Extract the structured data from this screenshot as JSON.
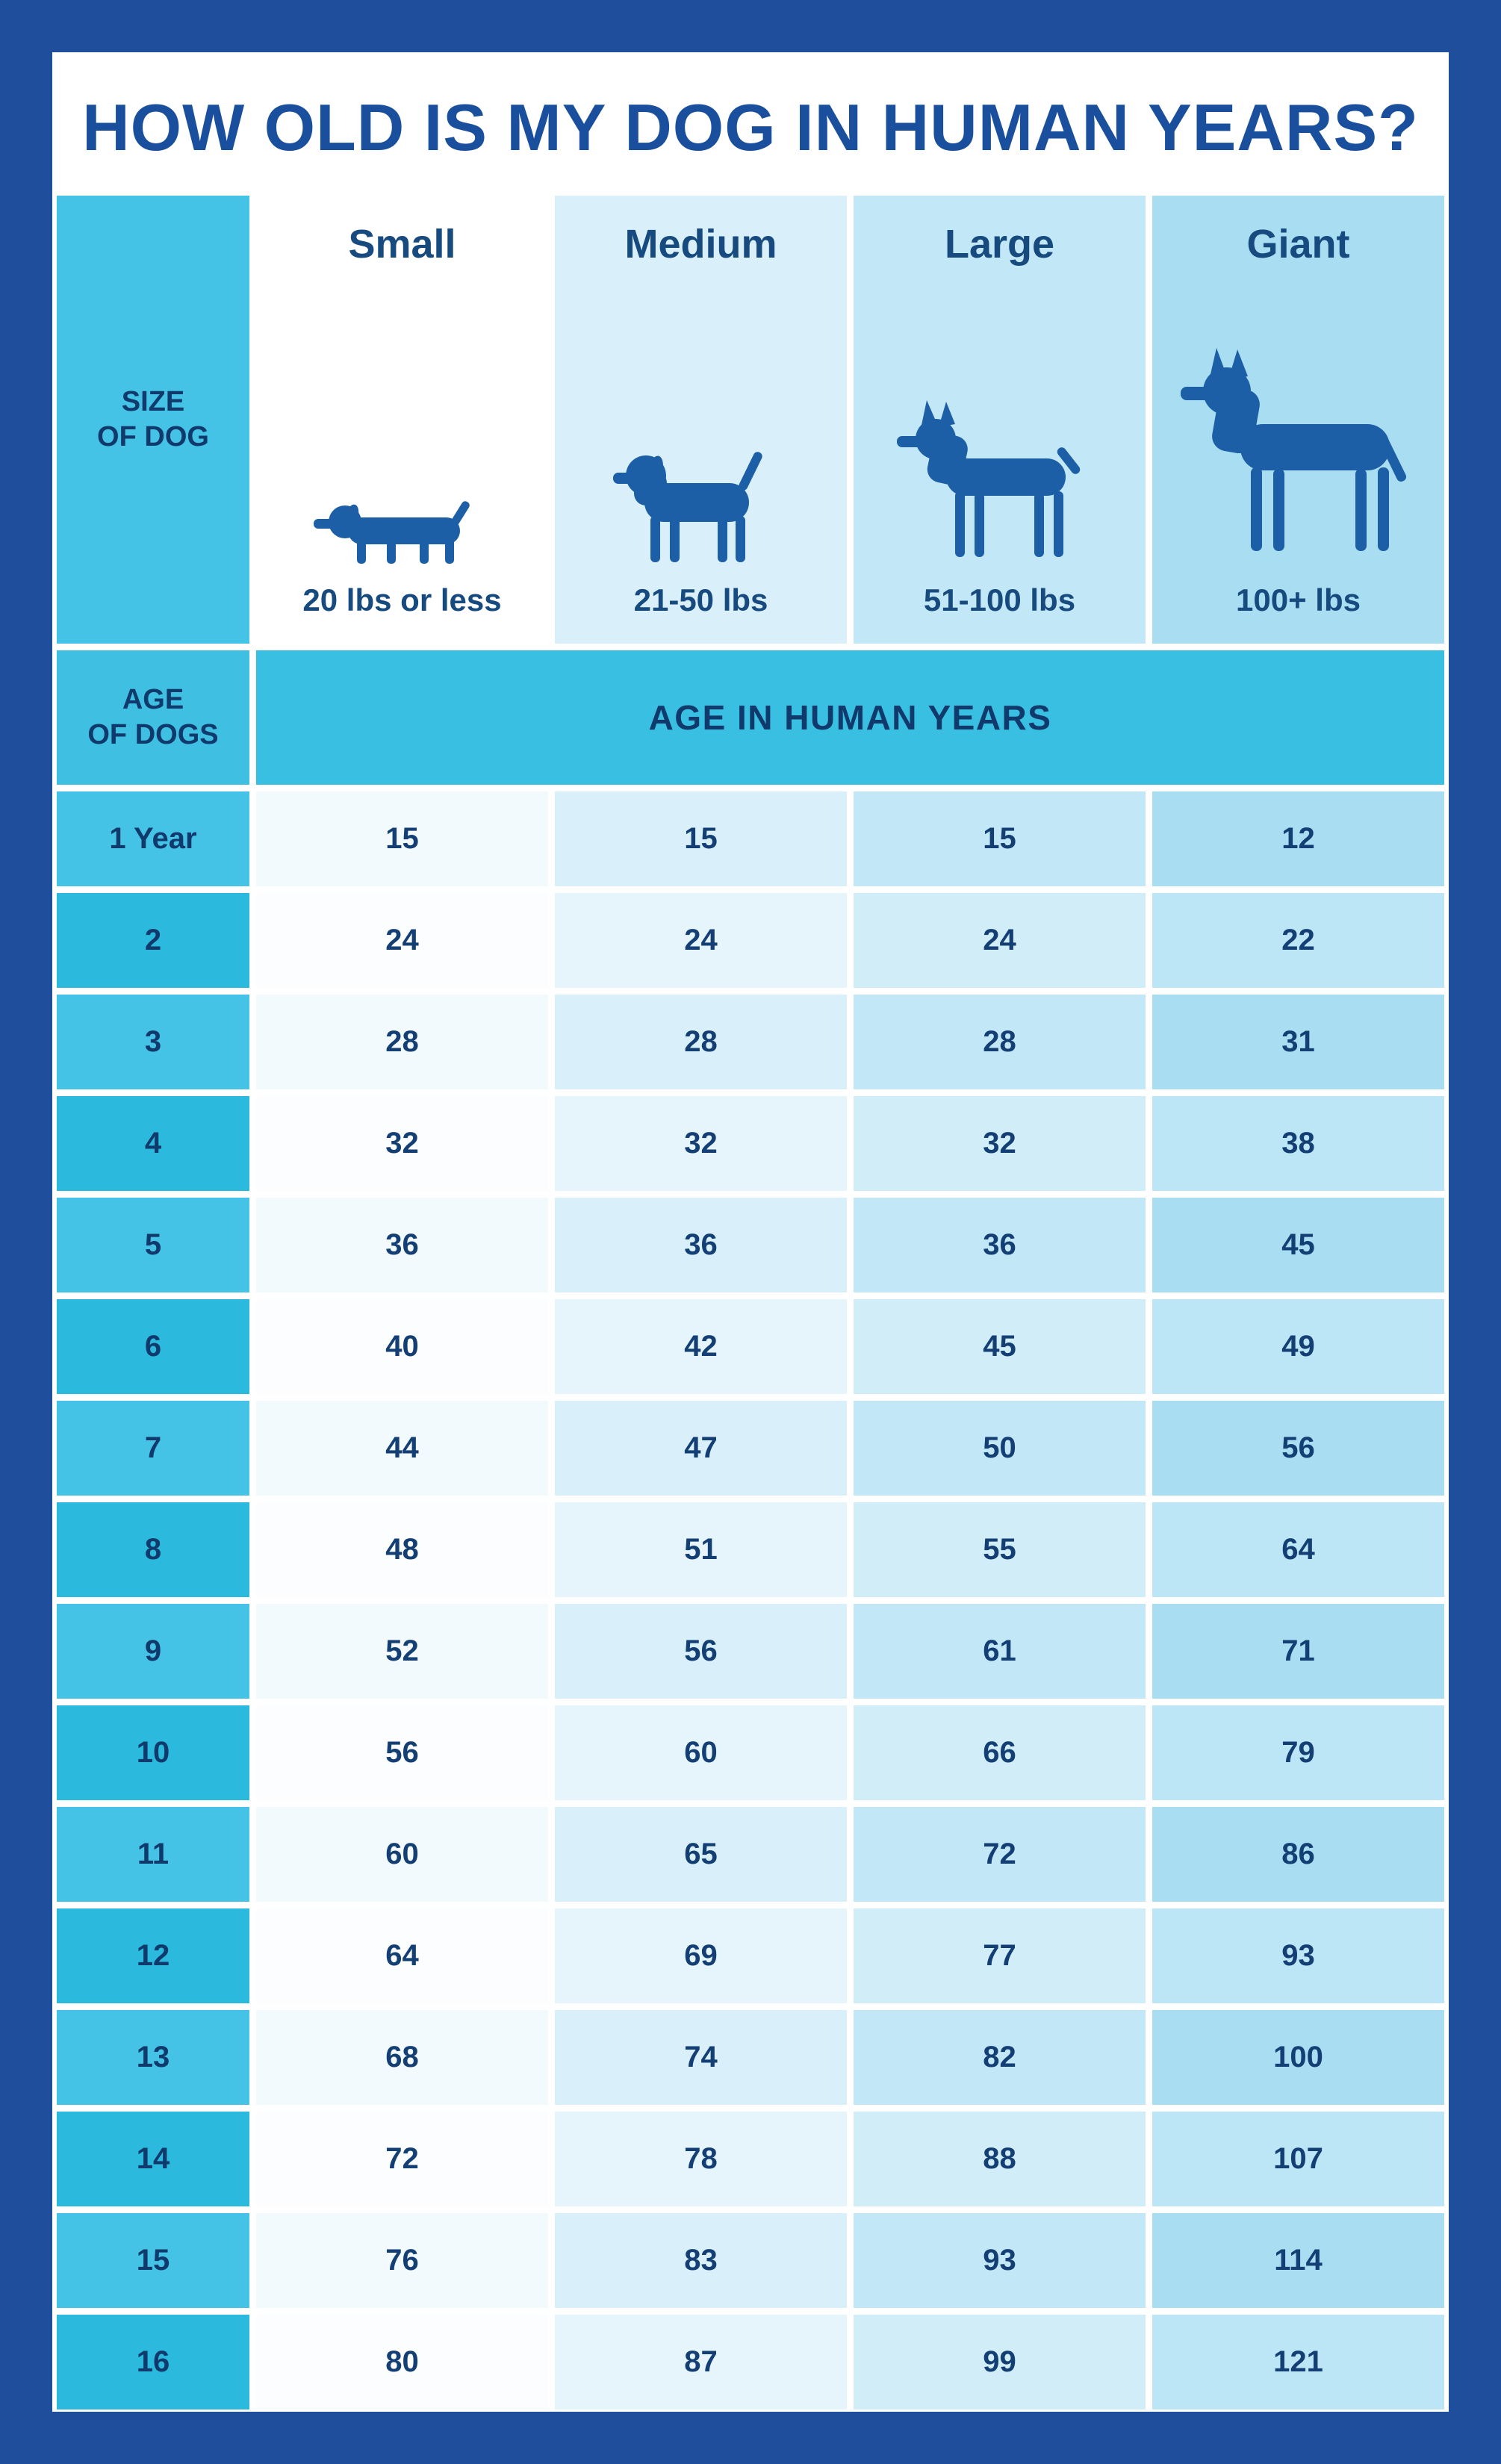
{
  "title": "HOW OLD IS MY DOG IN HUMAN YEARS?",
  "size_label": "SIZE\nOF DOG",
  "age_label": "AGE\nOF DOGS",
  "band_label": "AGE IN HUMAN YEARS",
  "columns": [
    {
      "name": "Small",
      "weight": "20 lbs or less",
      "icon": "dachshund-icon"
    },
    {
      "name": "Medium",
      "weight": "21-50 lbs",
      "icon": "beagle-icon"
    },
    {
      "name": "Large",
      "weight": "51-100 lbs",
      "icon": "doberman-icon"
    },
    {
      "name": "Giant",
      "weight": "100+ lbs",
      "icon": "great-dane-icon"
    }
  ],
  "colors": {
    "border_blue": "#1e4e9c",
    "title_navy": "#1a4f9d",
    "cyan_band": "#39bfe2",
    "cyan_row_light": "#45c3e6",
    "cyan_row_dark": "#2cb9de",
    "dog_silhouette": "#1d5fa6",
    "column_tints": [
      "#ffffff",
      "#d9f0fa",
      "#c2e7f6",
      "#a8ddf2"
    ],
    "text_navy": "#143f75"
  },
  "chart_data": {
    "type": "table",
    "title": "HOW OLD IS MY DOG IN HUMAN YEARS?",
    "columns": [
      "Small",
      "Medium",
      "Large",
      "Giant"
    ],
    "weights": [
      "20 lbs or less",
      "21-50 lbs",
      "51-100 lbs",
      "100+ lbs"
    ],
    "value_header": "AGE IN HUMAN YEARS",
    "row_header": "AGE OF DOGS",
    "rows": [
      {
        "age": "1 Year",
        "values": [
          15,
          15,
          15,
          12
        ]
      },
      {
        "age": "2",
        "values": [
          24,
          24,
          24,
          22
        ]
      },
      {
        "age": "3",
        "values": [
          28,
          28,
          28,
          31
        ]
      },
      {
        "age": "4",
        "values": [
          32,
          32,
          32,
          38
        ]
      },
      {
        "age": "5",
        "values": [
          36,
          36,
          36,
          45
        ]
      },
      {
        "age": "6",
        "values": [
          40,
          42,
          45,
          49
        ]
      },
      {
        "age": "7",
        "values": [
          44,
          47,
          50,
          56
        ]
      },
      {
        "age": "8",
        "values": [
          48,
          51,
          55,
          64
        ]
      },
      {
        "age": "9",
        "values": [
          52,
          56,
          61,
          71
        ]
      },
      {
        "age": "10",
        "values": [
          56,
          60,
          66,
          79
        ]
      },
      {
        "age": "11",
        "values": [
          60,
          65,
          72,
          86
        ]
      },
      {
        "age": "12",
        "values": [
          64,
          69,
          77,
          93
        ]
      },
      {
        "age": "13",
        "values": [
          68,
          74,
          82,
          100
        ]
      },
      {
        "age": "14",
        "values": [
          72,
          78,
          88,
          107
        ]
      },
      {
        "age": "15",
        "values": [
          76,
          83,
          93,
          114
        ]
      },
      {
        "age": "16",
        "values": [
          80,
          87,
          99,
          121
        ]
      }
    ]
  }
}
